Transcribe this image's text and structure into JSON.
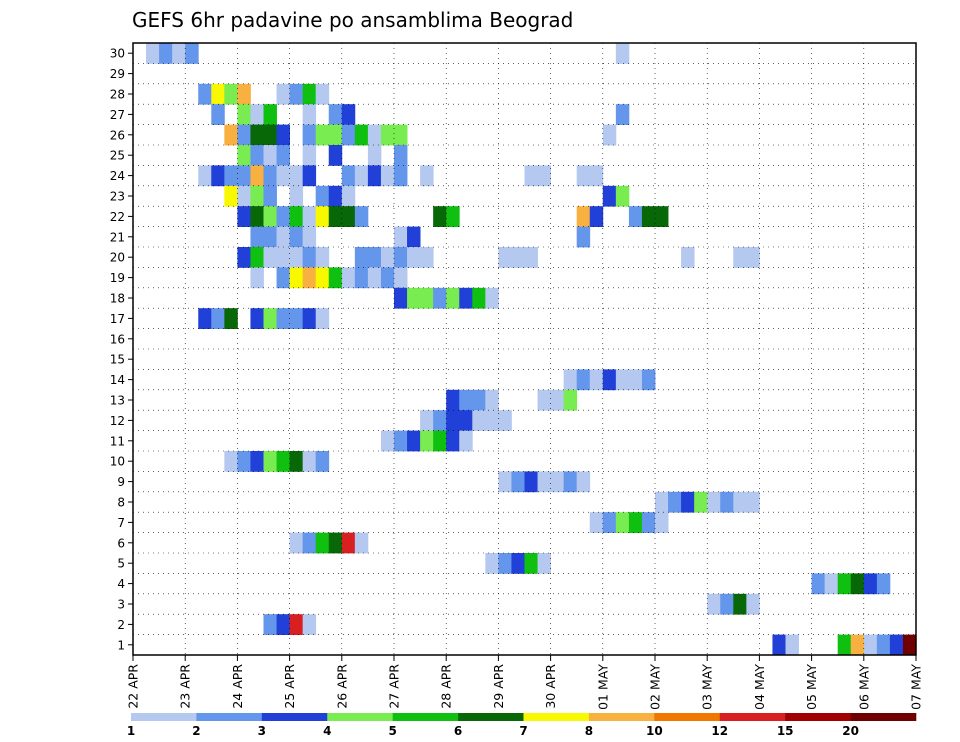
{
  "chart_data": {
    "type": "heatmap",
    "title": "GEFS 6hr padavine po ansamblima Beograd",
    "xlabel": "",
    "ylabel": "",
    "x_tick_labels": [
      "22 APR",
      "23 APR",
      "24 APR",
      "25 APR",
      "26 APR",
      "27 APR",
      "28 APR",
      "29 APR",
      "30 APR",
      "01 MAY",
      "02 MAY",
      "03 MAY",
      "04 MAY",
      "05 MAY",
      "06 MAY",
      "07 MAY"
    ],
    "y_tick_labels": [
      "1",
      "2",
      "3",
      "4",
      "5",
      "6",
      "7",
      "8",
      "9",
      "10",
      "11",
      "12",
      "13",
      "14",
      "15",
      "16",
      "17",
      "18",
      "19",
      "20",
      "21",
      "22",
      "23",
      "24",
      "25",
      "26",
      "27",
      "28",
      "29",
      "30"
    ],
    "xlim_steps": [
      0,
      60
    ],
    "ylim": [
      0,
      30
    ],
    "steps_per_day": 4,
    "grid": true,
    "legend_placement": "bottom",
    "legend_levels": [
      "1",
      "2",
      "3",
      "4",
      "5",
      "6",
      "7",
      "8",
      "10",
      "12",
      "15",
      "20"
    ],
    "colors": [
      "#b4c8f0",
      "#6496ec",
      "#2040d8",
      "#78ec50",
      "#10c010",
      "#086808",
      "#f8f800",
      "#f8b040",
      "#f07800",
      "#d82020",
      "#a00000",
      "#700000"
    ],
    "cells": [
      [
        1,
        30,
        0
      ],
      [
        2,
        30,
        1
      ],
      [
        3,
        30,
        0
      ],
      [
        4,
        30,
        1
      ],
      [
        37,
        30,
        0
      ],
      [
        5,
        28,
        1
      ],
      [
        6,
        28,
        6
      ],
      [
        7,
        28,
        3
      ],
      [
        8,
        28,
        7
      ],
      [
        11,
        28,
        0
      ],
      [
        12,
        28,
        1
      ],
      [
        13,
        28,
        4
      ],
      [
        14,
        28,
        0
      ],
      [
        6,
        27,
        1
      ],
      [
        8,
        27,
        3
      ],
      [
        9,
        27,
        0
      ],
      [
        10,
        27,
        4
      ],
      [
        13,
        27,
        0
      ],
      [
        15,
        27,
        1
      ],
      [
        16,
        27,
        2
      ],
      [
        37,
        27,
        1
      ],
      [
        7,
        26,
        7
      ],
      [
        8,
        26,
        1
      ],
      [
        9,
        26,
        5
      ],
      [
        10,
        26,
        5
      ],
      [
        11,
        26,
        2
      ],
      [
        13,
        26,
        1
      ],
      [
        14,
        26,
        3
      ],
      [
        15,
        26,
        3
      ],
      [
        16,
        26,
        1
      ],
      [
        17,
        26,
        4
      ],
      [
        18,
        26,
        0
      ],
      [
        19,
        26,
        3
      ],
      [
        20,
        26,
        3
      ],
      [
        36,
        26,
        0
      ],
      [
        8,
        25,
        3
      ],
      [
        9,
        25,
        1
      ],
      [
        10,
        25,
        0
      ],
      [
        11,
        25,
        1
      ],
      [
        13,
        25,
        0
      ],
      [
        15,
        25,
        2
      ],
      [
        18,
        25,
        0
      ],
      [
        20,
        25,
        1
      ],
      [
        5,
        24,
        0
      ],
      [
        6,
        24,
        2
      ],
      [
        7,
        24,
        1
      ],
      [
        8,
        24,
        1
      ],
      [
        9,
        24,
        7
      ],
      [
        10,
        24,
        1
      ],
      [
        11,
        24,
        0
      ],
      [
        12,
        24,
        0
      ],
      [
        13,
        24,
        2
      ],
      [
        16,
        24,
        1
      ],
      [
        17,
        24,
        0
      ],
      [
        18,
        24,
        2
      ],
      [
        19,
        24,
        0
      ],
      [
        20,
        24,
        1
      ],
      [
        22,
        24,
        0
      ],
      [
        30,
        24,
        0
      ],
      [
        31,
        24,
        0
      ],
      [
        34,
        24,
        0
      ],
      [
        35,
        24,
        0
      ],
      [
        7,
        23,
        6
      ],
      [
        8,
        23,
        0
      ],
      [
        9,
        23,
        3
      ],
      [
        10,
        23,
        1
      ],
      [
        12,
        23,
        0
      ],
      [
        14,
        23,
        1
      ],
      [
        15,
        23,
        2
      ],
      [
        16,
        23,
        0
      ],
      [
        36,
        23,
        2
      ],
      [
        37,
        23,
        3
      ],
      [
        8,
        22,
        2
      ],
      [
        9,
        22,
        5
      ],
      [
        10,
        22,
        3
      ],
      [
        11,
        22,
        1
      ],
      [
        12,
        22,
        4
      ],
      [
        13,
        22,
        0
      ],
      [
        14,
        22,
        6
      ],
      [
        15,
        22,
        5
      ],
      [
        16,
        22,
        5
      ],
      [
        17,
        22,
        1
      ],
      [
        23,
        22,
        5
      ],
      [
        24,
        22,
        4
      ],
      [
        34,
        22,
        7
      ],
      [
        35,
        22,
        2
      ],
      [
        38,
        22,
        1
      ],
      [
        39,
        22,
        5
      ],
      [
        40,
        22,
        5
      ],
      [
        9,
        21,
        1
      ],
      [
        10,
        21,
        1
      ],
      [
        11,
        21,
        0
      ],
      [
        12,
        21,
        1
      ],
      [
        13,
        21,
        0
      ],
      [
        20,
        21,
        0
      ],
      [
        21,
        21,
        2
      ],
      [
        34,
        21,
        1
      ],
      [
        8,
        20,
        2
      ],
      [
        9,
        20,
        4
      ],
      [
        10,
        20,
        0
      ],
      [
        11,
        20,
        0
      ],
      [
        12,
        20,
        0
      ],
      [
        13,
        20,
        1
      ],
      [
        14,
        20,
        0
      ],
      [
        17,
        20,
        1
      ],
      [
        18,
        20,
        1
      ],
      [
        19,
        20,
        0
      ],
      [
        20,
        20,
        1
      ],
      [
        21,
        20,
        0
      ],
      [
        22,
        20,
        0
      ],
      [
        28,
        20,
        0
      ],
      [
        29,
        20,
        0
      ],
      [
        30,
        20,
        0
      ],
      [
        42,
        20,
        0
      ],
      [
        46,
        20,
        0
      ],
      [
        47,
        20,
        0
      ]
    ],
    "runs": [
      [
        9,
        19,
        0
      ],
      [
        11,
        19,
        1
      ],
      [
        12,
        19,
        6
      ],
      [
        13,
        19,
        7
      ],
      [
        14,
        19,
        6
      ],
      [
        15,
        19,
        4
      ],
      [
        16,
        19,
        0
      ],
      [
        17,
        19,
        1
      ],
      [
        18,
        19,
        0
      ],
      [
        19,
        19,
        1
      ],
      [
        20,
        19,
        0
      ],
      [
        20,
        18,
        2
      ],
      [
        21,
        18,
        3
      ],
      [
        22,
        18,
        3
      ],
      [
        23,
        18,
        1
      ],
      [
        24,
        18,
        3
      ],
      [
        25,
        18,
        2
      ],
      [
        26,
        18,
        4
      ],
      [
        27,
        18,
        0
      ],
      [
        5,
        17,
        2
      ],
      [
        6,
        17,
        1
      ],
      [
        7,
        17,
        5
      ],
      [
        9,
        17,
        2
      ],
      [
        10,
        17,
        3
      ],
      [
        11,
        17,
        1
      ],
      [
        12,
        17,
        1
      ],
      [
        13,
        17,
        2
      ],
      [
        14,
        17,
        0
      ]
    ]
  }
}
